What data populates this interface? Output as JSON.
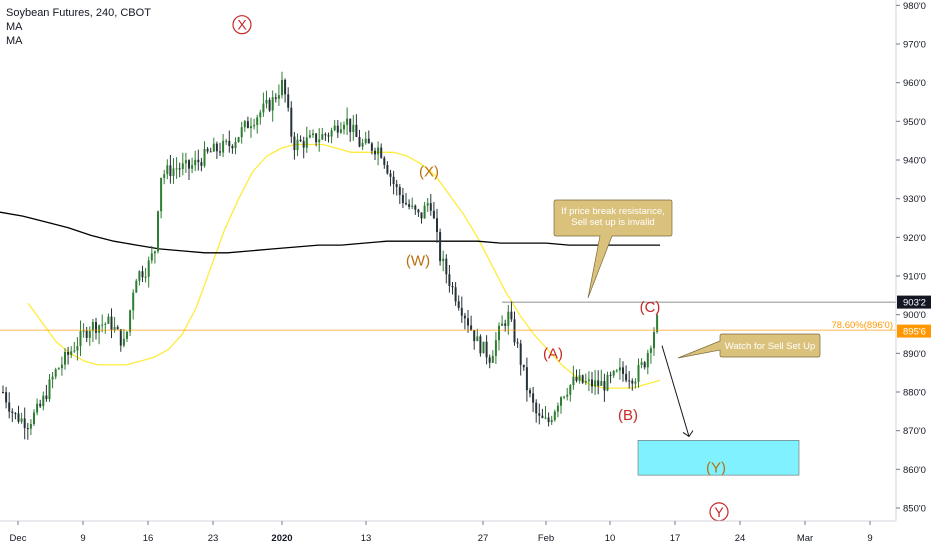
{
  "header": {
    "title": "Soybean Futures, 240, CBOT",
    "indicators": [
      "MA",
      "MA"
    ]
  },
  "colors": {
    "up": "#26a69a",
    "down": "#ef5350",
    "candle_body_up": "#2e7d32",
    "candle_body_down": "#263238",
    "ma_fast": "#ffeb3b",
    "ma_slow": "#000000",
    "fib_line": "#ff9800",
    "target_box": "#80f2ff",
    "callout_fill": "#dbc27c",
    "wave_red": "#c62828",
    "wave_brown": "#b8700c",
    "axis": "#131722"
  },
  "chart_data": {
    "type": "candlestick",
    "title": "Soybean Futures, 240, CBOT",
    "x_ticks": [
      "Dec",
      "9",
      "16",
      "23",
      "2020",
      "13",
      "27",
      "Feb",
      "10",
      "17",
      "24",
      "Mar",
      "9"
    ],
    "y_ticks": [
      "980'0",
      "970'0",
      "960'0",
      "950'0",
      "940'0",
      "930'0",
      "920'0",
      "910'0",
      "900'0",
      "890'0",
      "880'0",
      "870'0",
      "860'0",
      "850'0"
    ],
    "y_values": [
      980,
      970,
      960,
      950,
      940,
      930,
      920,
      910,
      900,
      890,
      880,
      870,
      860,
      850
    ],
    "ylim": [
      846,
      981
    ],
    "price_labels": [
      {
        "text": "903'2",
        "value": 903.25
      },
      {
        "text": "895'6",
        "value": 895.75
      }
    ],
    "fib_label": "78.60%(896'0)",
    "fib_value": 896.0,
    "resistance_value": 903.25,
    "wave_labels": [
      {
        "text": "X",
        "circled": true,
        "date_index": 23.5,
        "value": 975,
        "color": "red"
      },
      {
        "text": "(X)",
        "circled": false,
        "date_index": 43.5,
        "value": 937,
        "color": "brown"
      },
      {
        "text": "(W)",
        "circled": false,
        "date_index": 42.5,
        "value": 914,
        "color": "brown"
      },
      {
        "text": "(A)",
        "circled": false,
        "date_index": 55,
        "value": 890,
        "color": "red"
      },
      {
        "text": "(B)",
        "circled": false,
        "date_index": 63.5,
        "value": 874,
        "color": "red"
      },
      {
        "text": "(C)",
        "circled": false,
        "date_index": 66,
        "value": 902,
        "color": "red"
      },
      {
        "text": "(Y)",
        "circled": false,
        "date_index": 72.5,
        "value": 860.5,
        "color": "brown"
      },
      {
        "text": "Y",
        "circled": true,
        "date_index": 72.5,
        "value": 849,
        "color": "red"
      }
    ],
    "annotations": [
      {
        "text": "If price break resistance, Sell set up is invalid",
        "lines": [
          "If price break resistance,",
          "Sell set up is invalid"
        ]
      },
      {
        "text": "Watch for Sell Set Up",
        "lines": [
          "Watch for Sell Set Up"
        ]
      }
    ],
    "target_zone": {
      "from_value": 858.5,
      "to_value": 867.5
    },
    "projection": {
      "from_value": 892,
      "to_value": 868.5
    },
    "ma_fast": [
      903,
      898,
      893,
      890,
      888,
      887,
      887,
      887,
      888,
      889,
      891,
      895,
      902,
      912,
      922,
      930,
      937,
      941,
      943,
      944,
      944,
      944,
      943,
      942,
      942,
      942,
      942,
      941,
      939,
      936,
      931,
      926,
      920,
      913,
      906,
      900,
      895,
      891,
      887,
      884,
      882,
      881,
      881,
      881,
      882,
      883
    ],
    "ma_slow": [
      926.5,
      925.5,
      924.0,
      922.5,
      920.5,
      919.0,
      918.0,
      917.0,
      916.5,
      916.0,
      916.0,
      916.5,
      917.0,
      917.5,
      918.0,
      918.0,
      918.5,
      919.0,
      919.0,
      919.0,
      919.0,
      919.0,
      918.5,
      918.5,
      918.5,
      918.0,
      918.0,
      918.0,
      918.0,
      918.0
    ]
  }
}
